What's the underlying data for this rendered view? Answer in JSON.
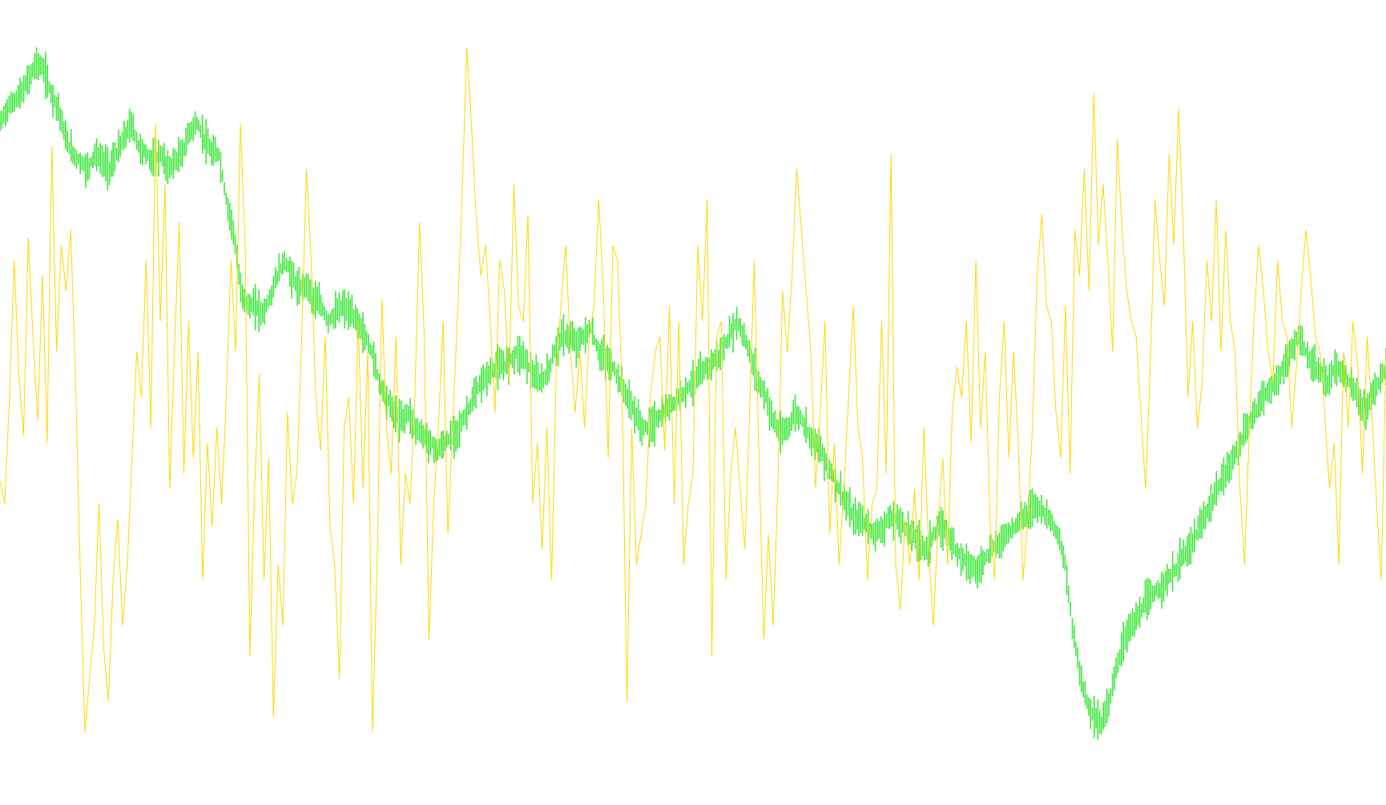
{
  "chart_data": {
    "type": "line",
    "title": "",
    "xlabel": "",
    "ylabel": "",
    "grid": false,
    "legend": "none",
    "ylim": [
      0,
      100
    ],
    "series": [
      {
        "color": "#ffd700",
        "style": "oscillator-line",
        "values": [
          41,
          38,
          52,
          70,
          55,
          47,
          73,
          60,
          49,
          68,
          46,
          85,
          58,
          72,
          66,
          74,
          55,
          30,
          8,
          15,
          22,
          38,
          19,
          12,
          28,
          36,
          22,
          30,
          44,
          58,
          52,
          70,
          48,
          88,
          62,
          80,
          40,
          58,
          75,
          42,
          62,
          44,
          58,
          28,
          46,
          35,
          48,
          38,
          52,
          70,
          58,
          88,
          72,
          18,
          40,
          55,
          28,
          44,
          10,
          30,
          22,
          50,
          38,
          42,
          60,
          82,
          70,
          52,
          45,
          60,
          35,
          30,
          15,
          48,
          52,
          38,
          62,
          40,
          58,
          8,
          30,
          65,
          48,
          42,
          60,
          30,
          42,
          38,
          52,
          75,
          60,
          20,
          38,
          48,
          62,
          34,
          48,
          62,
          78,
          98,
          88,
          76,
          68,
          72,
          62,
          50,
          70,
          66,
          54,
          80,
          64,
          62,
          76,
          38,
          46,
          32,
          48,
          28,
          56,
          64,
          72,
          58,
          50,
          58,
          48,
          60,
          64,
          78,
          66,
          44,
          72,
          70,
          52,
          12,
          48,
          30,
          34,
          38,
          52,
          58,
          60,
          45,
          64,
          38,
          62,
          30,
          38,
          42,
          72,
          62,
          78,
          18,
          60,
          62,
          28,
          42,
          48,
          40,
          32,
          50,
          70,
          44,
          20,
          34,
          22,
          40,
          66,
          58,
          68,
          82,
          74,
          66,
          58,
          40,
          50,
          62,
          34,
          46,
          30,
          40,
          52,
          64,
          48,
          44,
          28,
          38,
          40,
          62,
          42,
          84,
          30,
          24,
          36,
          30,
          40,
          28,
          48,
          32,
          22,
          36,
          44,
          30,
          50,
          56,
          52,
          62,
          46,
          70,
          48,
          58,
          36,
          28,
          52,
          62,
          44,
          58,
          46,
          28,
          36,
          48,
          68,
          76,
          64,
          62,
          50,
          44,
          64,
          42,
          74,
          68,
          82,
          66,
          92,
          72,
          80,
          70,
          58,
          86,
          74,
          66,
          62,
          60,
          50,
          40,
          56,
          78,
          70,
          64,
          84,
          72,
          90,
          74,
          52,
          62,
          48,
          54,
          70,
          62,
          78,
          58,
          74,
          62,
          58,
          40,
          30,
          48,
          62,
          72,
          66,
          58,
          54,
          70,
          62,
          60,
          48,
          56,
          66,
          74,
          68,
          60,
          58,
          50,
          40,
          46,
          30,
          58,
          48,
          62,
          56,
          42,
          60,
          50,
          38,
          28,
          58
        ]
      },
      {
        "color": "#3ce73c",
        "style": "ohlc-bars",
        "values": [
          88,
          90,
          91,
          92,
          94,
          96,
          95,
          92,
          90,
          86,
          84,
          83,
          82,
          84,
          83,
          82,
          84,
          86,
          88,
          85,
          84,
          83,
          84,
          82,
          83,
          84,
          87,
          88,
          86,
          84,
          84,
          78,
          74,
          66,
          64,
          64,
          63,
          65,
          68,
          70,
          68,
          66,
          67,
          65,
          64,
          62,
          63,
          64,
          63,
          62,
          60,
          58,
          54,
          52,
          50,
          49,
          50,
          48,
          47,
          46,
          45,
          46,
          47,
          48,
          50,
          52,
          54,
          55,
          56,
          56,
          57,
          58,
          57,
          55,
          54,
          55,
          58,
          60,
          60,
          59,
          60,
          61,
          58,
          57,
          56,
          54,
          52,
          50,
          48,
          48,
          49,
          50,
          51,
          52,
          53,
          54,
          55,
          56,
          57,
          58,
          60,
          62,
          60,
          57,
          54,
          52,
          49,
          47,
          48,
          50,
          49,
          47,
          46,
          44,
          42,
          40,
          38,
          36,
          36,
          35,
          34,
          35,
          36,
          36,
          35,
          34,
          33,
          32,
          34,
          35,
          34,
          32,
          31,
          30,
          29,
          31,
          32,
          33,
          34,
          35,
          36,
          37,
          38,
          37,
          36,
          34,
          30,
          22,
          16,
          12,
          10,
          9,
          12,
          16,
          20,
          22,
          23,
          25,
          26,
          27,
          28,
          29,
          31,
          32,
          34,
          36,
          38,
          40,
          42,
          44,
          46,
          48,
          50,
          52,
          53,
          54,
          56,
          58,
          60,
          58,
          56,
          55,
          54,
          56,
          55,
          54,
          52,
          50,
          52,
          54,
          56
        ]
      }
    ]
  }
}
